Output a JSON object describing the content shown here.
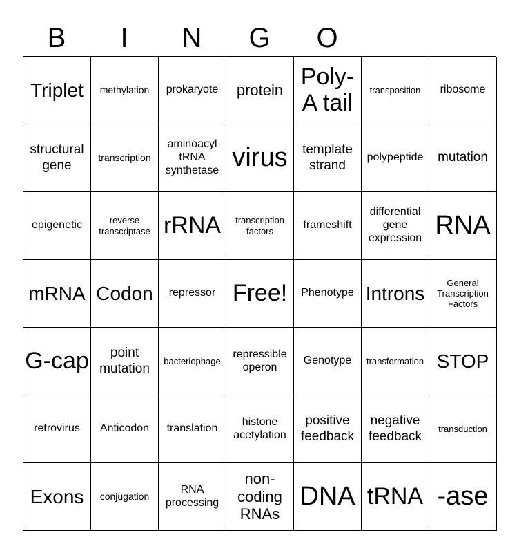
{
  "header": [
    "B",
    "I",
    "N",
    "G",
    "O"
  ],
  "cells": [
    "Triplet",
    "methylation",
    "prokaryote",
    "protein",
    "Poly-A tail",
    "transposition",
    "ribosome",
    "structural gene",
    "transcription",
    "aminoacyl tRNA synthetase",
    "virus",
    "template strand",
    "polypeptide",
    "mutation",
    "epigenetic",
    "reverse transcriptase",
    "rRNA",
    "transcription factors",
    "frameshift",
    "differential gene expression",
    "RNA",
    "mRNA",
    "Codon",
    "repressor",
    "Free!",
    "Phenotype",
    "Introns",
    "General Transcription Factors",
    "G-cap",
    "point mutation",
    "bacteriophage",
    "repressible operon",
    "Genotype",
    "transformation",
    "STOP",
    "retrovirus",
    "Anticodon",
    "translation",
    "histone acetylation",
    "positive feedback",
    "negative feedback",
    "transduction",
    "Exons",
    "conjugation",
    "RNA processing",
    "non-coding RNAs",
    "DNA",
    "tRNA",
    "-ase"
  ]
}
